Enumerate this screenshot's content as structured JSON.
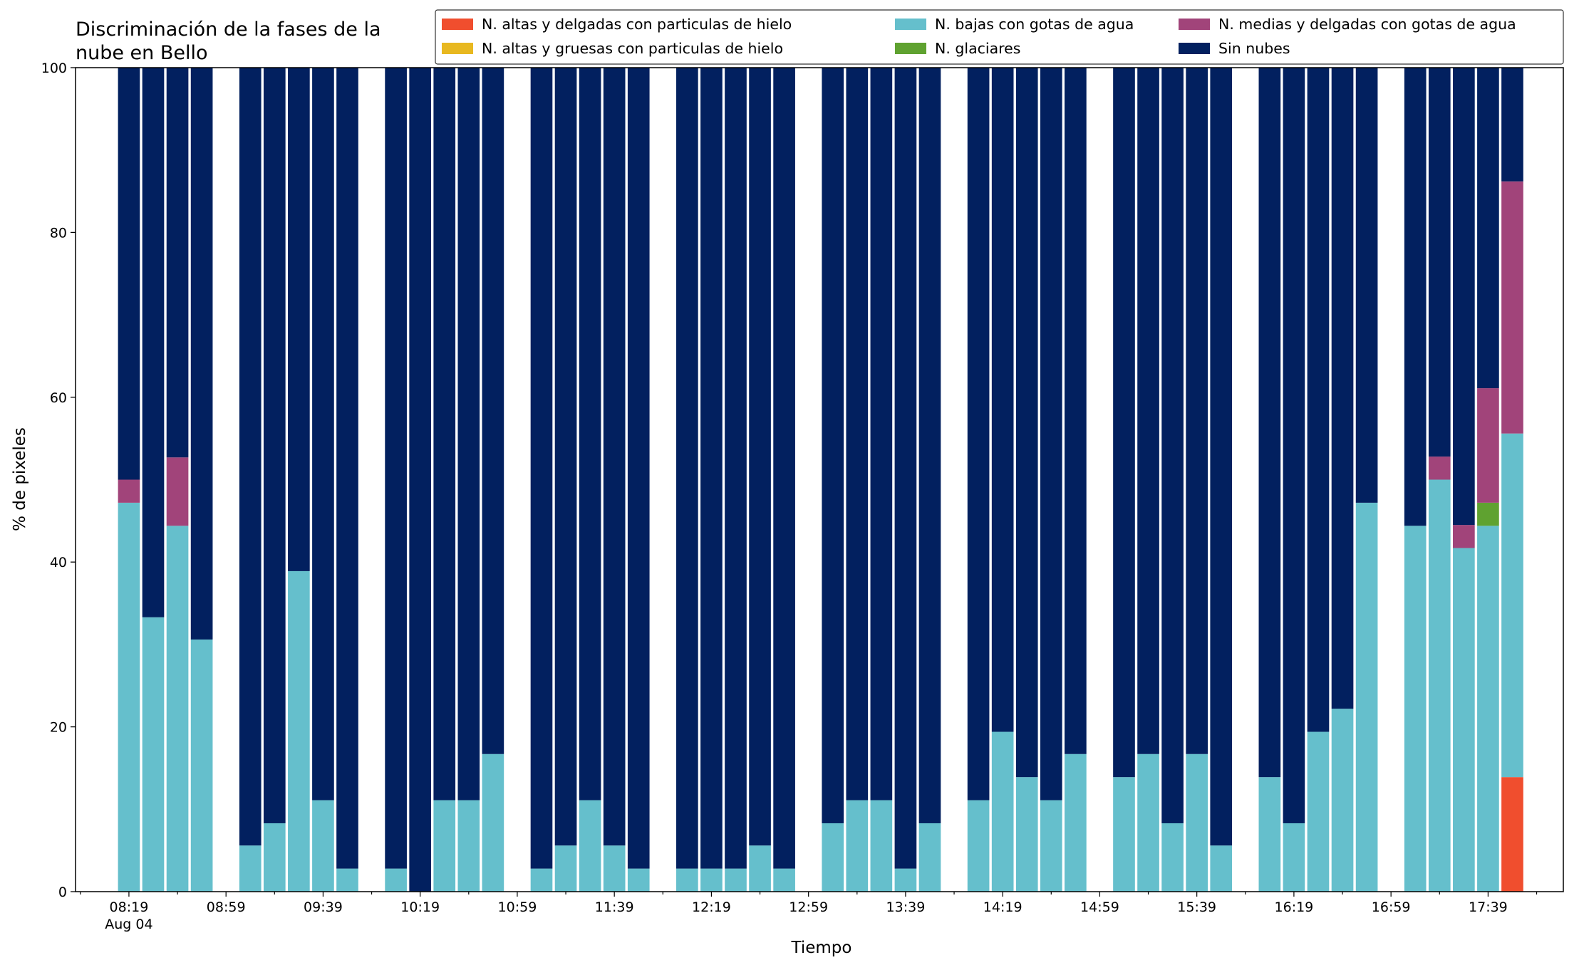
{
  "chart_data": {
    "type": "bar",
    "stacked": true,
    "title": [
      "Discriminación de la fases de la",
      "nube en Bello"
    ],
    "xlabel": "Tiempo",
    "ylabel": "% de pixeles",
    "ylim": [
      0,
      100
    ],
    "yticks": [
      0,
      20,
      40,
      60,
      80,
      100
    ],
    "xlim": [
      "07:57",
      "18:10"
    ],
    "xticks_major": [
      "08:19",
      "08:59",
      "09:39",
      "10:19",
      "10:59",
      "11:39",
      "12:19",
      "12:59",
      "13:39",
      "14:19",
      "14:59",
      "15:39",
      "16:19",
      "16:59",
      "17:39"
    ],
    "x_date_label": "Aug 04",
    "grid": false,
    "legend_position": "top-right",
    "x": [
      "08:19",
      "08:29",
      "08:39",
      "08:49",
      "09:09",
      "09:19",
      "09:29",
      "09:39",
      "09:49",
      "10:09",
      "10:19",
      "10:29",
      "10:39",
      "10:49",
      "11:09",
      "11:19",
      "11:29",
      "11:39",
      "11:49",
      "12:09",
      "12:19",
      "12:29",
      "12:39",
      "12:49",
      "13:09",
      "13:19",
      "13:29",
      "13:39",
      "13:49",
      "14:09",
      "14:19",
      "14:29",
      "14:39",
      "14:49",
      "15:09",
      "15:19",
      "15:29",
      "15:39",
      "15:49",
      "16:09",
      "16:19",
      "16:29",
      "16:39",
      "16:49",
      "17:09",
      "17:19",
      "17:29",
      "17:39",
      "17:49"
    ],
    "series": [
      {
        "name": "N. altas y delgadas con particulas de hielo",
        "color": "#f04e2e",
        "values": [
          0,
          0,
          0,
          0,
          0,
          0,
          0,
          0,
          0,
          0,
          0,
          0,
          0,
          0,
          0,
          0,
          0,
          0,
          0,
          0,
          0,
          0,
          0,
          0,
          0,
          0,
          0,
          0,
          0,
          0,
          0,
          0,
          0,
          0,
          0,
          0,
          0,
          0,
          0,
          0,
          0,
          0,
          0,
          0,
          0,
          0,
          0,
          0,
          13.9
        ]
      },
      {
        "name": "N. altas y gruesas con particulas de hielo",
        "color": "#e8b820",
        "values": [
          0,
          0,
          0,
          0,
          0,
          0,
          0,
          0,
          0,
          0,
          0,
          0,
          0,
          0,
          0,
          0,
          0,
          0,
          0,
          0,
          0,
          0,
          0,
          0,
          0,
          0,
          0,
          0,
          0,
          0,
          0,
          0,
          0,
          0,
          0,
          0,
          0,
          0,
          0,
          0,
          0,
          0,
          0,
          0,
          0,
          0,
          0,
          0,
          0
        ]
      },
      {
        "name": "N. bajas con gotas de agua",
        "color": "#65bfcc",
        "values": [
          47.2,
          33.3,
          44.4,
          30.6,
          5.6,
          8.3,
          38.9,
          11.1,
          2.8,
          2.8,
          0,
          11.1,
          11.1,
          16.7,
          2.8,
          5.6,
          11.1,
          5.6,
          2.8,
          2.8,
          2.8,
          2.8,
          5.6,
          2.8,
          8.3,
          11.1,
          11.1,
          2.8,
          8.3,
          11.1,
          19.4,
          13.9,
          11.1,
          16.7,
          13.9,
          16.7,
          8.3,
          16.7,
          5.6,
          13.9,
          8.3,
          19.4,
          22.2,
          47.2,
          44.4,
          50.0,
          41.7,
          44.4,
          41.7
        ]
      },
      {
        "name": "N. glaciares",
        "color": "#5fa230",
        "values": [
          0,
          0,
          0,
          0,
          0,
          0,
          0,
          0,
          0,
          0,
          0,
          0,
          0,
          0,
          0,
          0,
          0,
          0,
          0,
          0,
          0,
          0,
          0,
          0,
          0,
          0,
          0,
          0,
          0,
          0,
          0,
          0,
          0,
          0,
          0,
          0,
          0,
          0,
          0,
          0,
          0,
          0,
          0,
          0,
          0,
          0,
          0,
          2.8,
          0
        ]
      },
      {
        "name": "N. medias y delgadas con gotas de agua",
        "color": "#a1447a",
        "values": [
          2.8,
          0,
          8.3,
          0,
          0,
          0,
          0,
          0,
          0,
          0,
          0,
          0,
          0,
          0,
          0,
          0,
          0,
          0,
          0,
          0,
          0,
          0,
          0,
          0,
          0,
          0,
          0,
          0,
          0,
          0,
          0,
          0,
          0,
          0,
          0,
          0,
          0,
          0,
          0,
          0,
          0,
          0,
          0,
          0,
          0,
          2.8,
          2.8,
          13.9,
          30.6
        ]
      },
      {
        "name": "Sin nubes",
        "color": "#02205f",
        "values": [
          50.0,
          66.7,
          47.3,
          69.4,
          94.4,
          91.7,
          61.1,
          88.9,
          97.2,
          97.2,
          100,
          88.9,
          88.9,
          83.3,
          97.2,
          94.4,
          88.9,
          94.4,
          97.2,
          97.2,
          97.2,
          97.2,
          94.4,
          97.2,
          91.7,
          88.9,
          88.9,
          97.2,
          91.7,
          88.9,
          80.6,
          86.1,
          88.9,
          83.3,
          86.1,
          83.3,
          91.7,
          83.3,
          94.4,
          86.1,
          91.7,
          80.6,
          77.8,
          52.8,
          55.6,
          47.2,
          55.5,
          38.9,
          13.8
        ]
      }
    ]
  }
}
